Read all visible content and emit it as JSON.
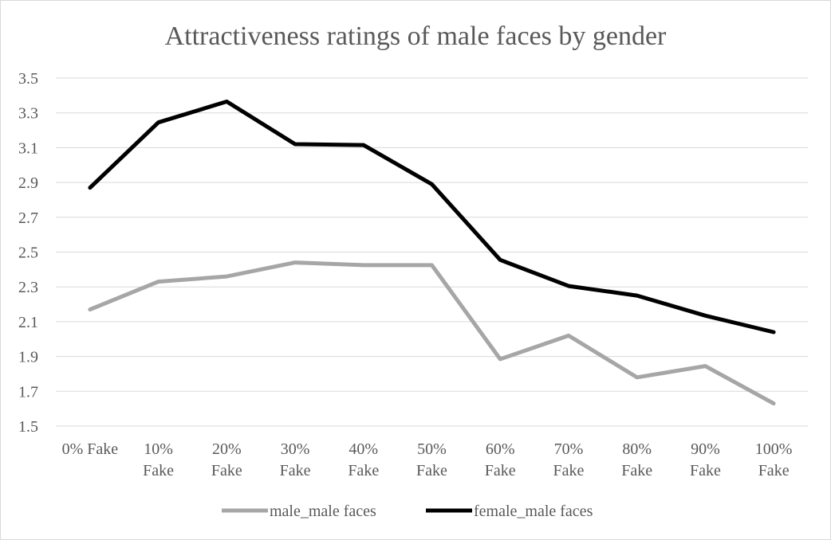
{
  "chart_data": {
    "type": "line",
    "title": "Attractiveness ratings of male faces by gender",
    "xlabel": "",
    "ylabel": "",
    "categories": [
      [
        "0% Fake"
      ],
      [
        "10%",
        "Fake"
      ],
      [
        "20%",
        "Fake"
      ],
      [
        "30%",
        "Fake"
      ],
      [
        "40%",
        "Fake"
      ],
      [
        "50%",
        "Fake"
      ],
      [
        "60%",
        "Fake"
      ],
      [
        "70%",
        "Fake"
      ],
      [
        "80%",
        "Fake"
      ],
      [
        "90%",
        "Fake"
      ],
      [
        "100%",
        "Fake"
      ]
    ],
    "ylim": [
      1.5,
      3.5
    ],
    "yticks": [
      "1.5",
      "1.7",
      "1.9",
      "2.1",
      "2.3",
      "2.5",
      "2.7",
      "2.9",
      "3.1",
      "3.3",
      "3.5"
    ],
    "grid": true,
    "legend_position": "bottom",
    "series": [
      {
        "name": "male_male faces",
        "color": "#a6a6a6",
        "values": [
          2.17,
          2.33,
          2.36,
          2.44,
          2.425,
          2.425,
          1.885,
          2.02,
          1.78,
          1.845,
          1.63
        ]
      },
      {
        "name": "female_male faces",
        "color": "#000000",
        "values": [
          2.87,
          3.245,
          3.365,
          3.12,
          3.115,
          2.89,
          2.455,
          2.305,
          2.25,
          2.135,
          2.04
        ]
      }
    ]
  }
}
